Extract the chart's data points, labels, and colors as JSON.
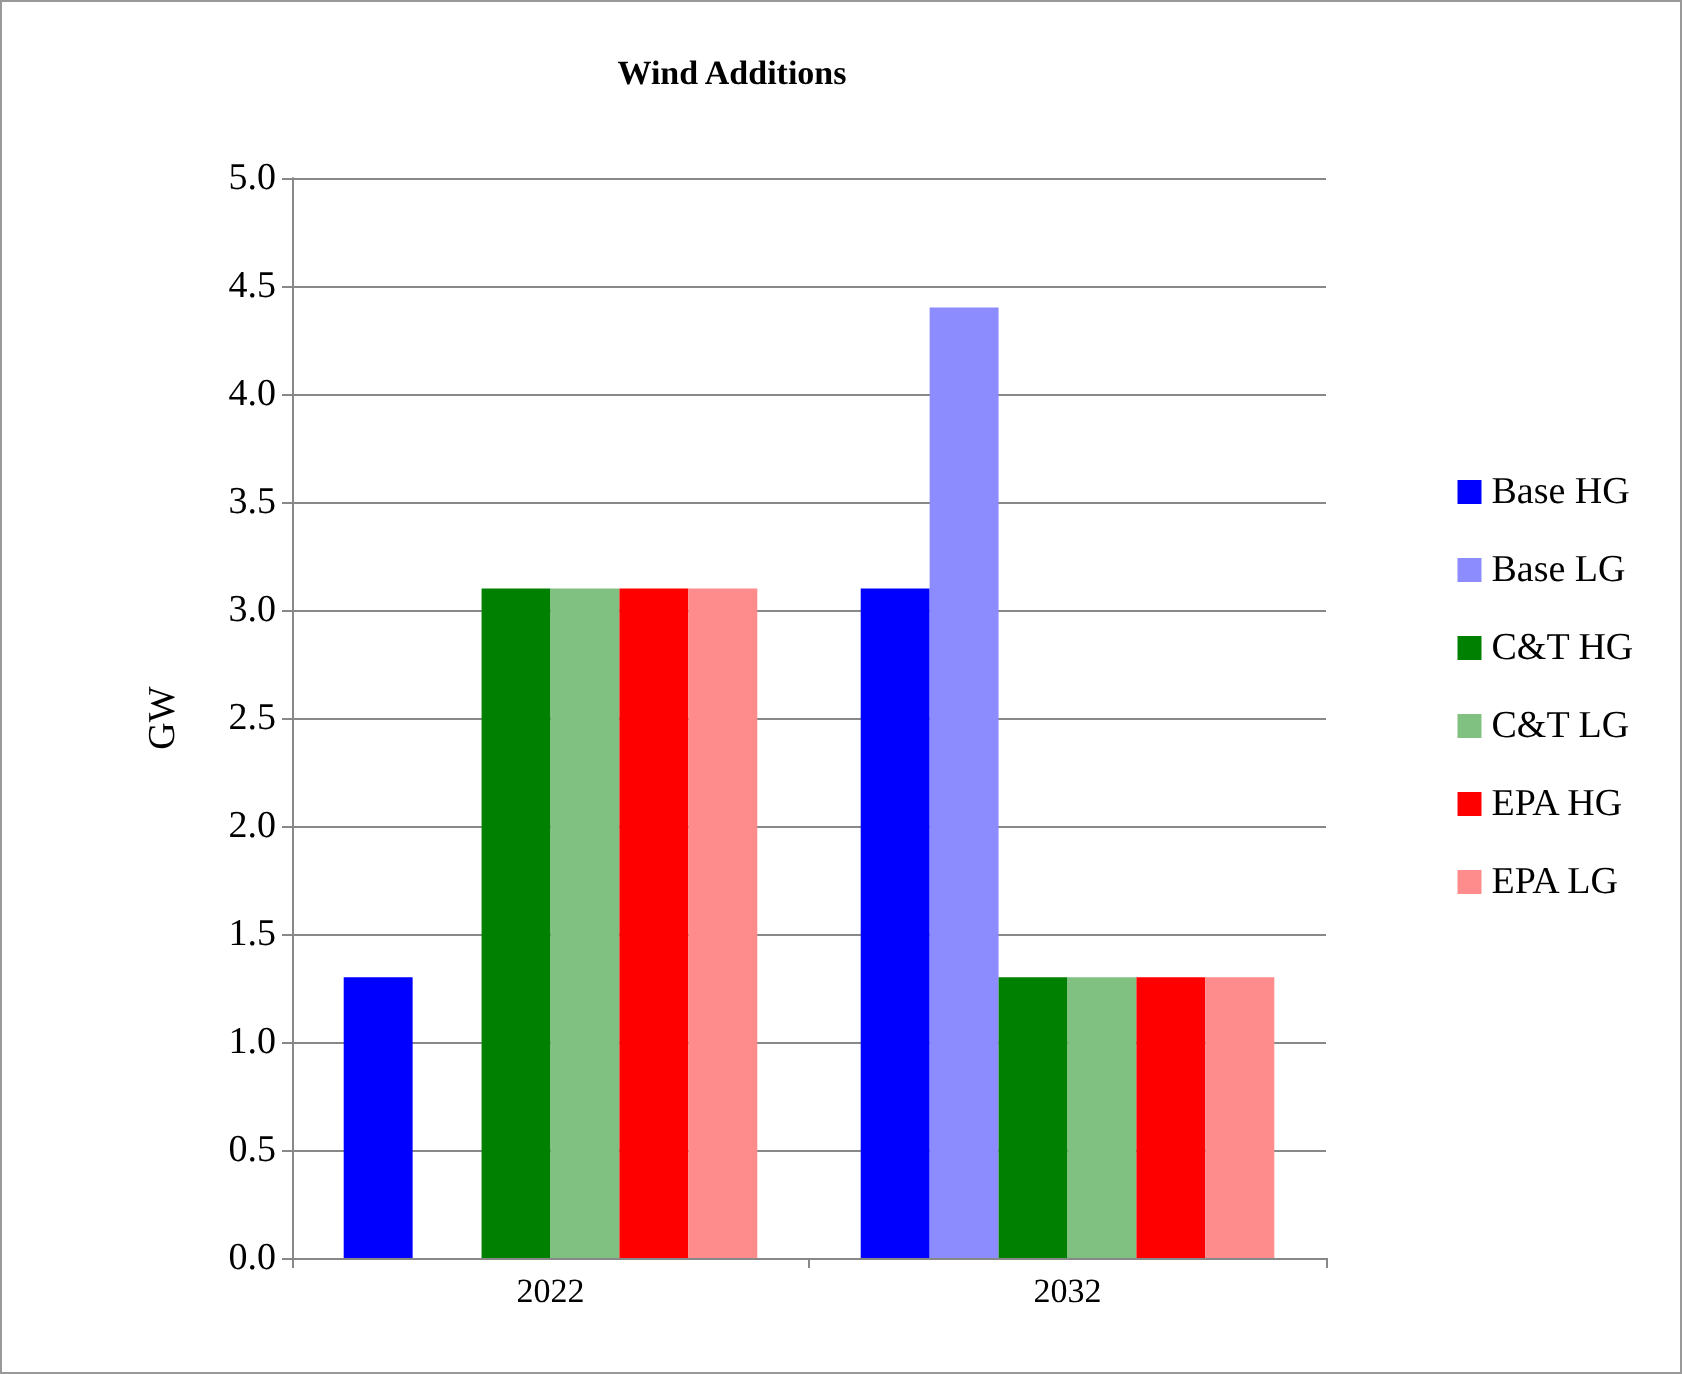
{
  "chart_data": {
    "type": "bar",
    "title": "Wind Additions",
    "ylabel": "GW",
    "categories": [
      "2022",
      "2032"
    ],
    "series": [
      {
        "name": "Base HG",
        "color": "#0000ff",
        "values": [
          1.3,
          3.1
        ]
      },
      {
        "name": "Base LG",
        "color": "#8c8cff",
        "values": [
          null,
          4.4
        ]
      },
      {
        "name": "C&T HG",
        "color": "#008000",
        "values": [
          3.1,
          1.3
        ]
      },
      {
        "name": "C&T LG",
        "color": "#80c080",
        "values": [
          3.1,
          1.3
        ]
      },
      {
        "name": "EPA HG",
        "color": "#ff0000",
        "values": [
          3.1,
          1.3
        ]
      },
      {
        "name": "EPA LG",
        "color": "#ff8c8c",
        "values": [
          3.1,
          1.3
        ]
      }
    ],
    "ylim": [
      0,
      5
    ],
    "yticks": [
      {
        "value": 0,
        "label": "0.0"
      },
      0.5,
      {
        "value": 1,
        "label": "1.0"
      },
      1.5,
      {
        "value": 2,
        "label": "2.0"
      },
      2.5,
      {
        "value": 3,
        "label": "3.0"
      },
      3.5,
      {
        "value": 4,
        "label": "4.0"
      },
      4.5,
      {
        "value": 5,
        "label": "5.0"
      }
    ],
    "grid": "y",
    "legend": "right"
  }
}
